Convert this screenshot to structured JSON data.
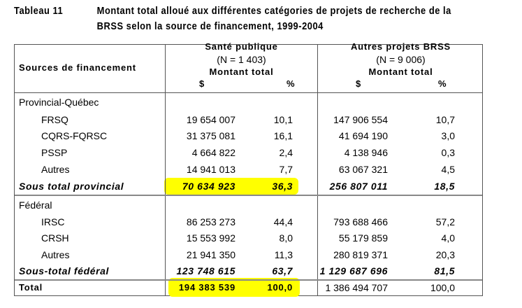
{
  "title": {
    "label": "Tableau 11",
    "line1": "Montant total alloué aux différentes catégories de projets de recherche de la",
    "line2": "BRSS selon la source de financement, 1999-2004"
  },
  "header": {
    "sources": "Sources de financement",
    "col1": {
      "name": "Santé publique",
      "n": "(N = 1 403)",
      "sub": "Montant total",
      "dollar": "$",
      "pct": "%"
    },
    "col2": {
      "name": "Autres projets BRSS",
      "n": "(N = 9 006)",
      "sub": "Montant total",
      "dollar": "$",
      "pct": "%"
    }
  },
  "rows": [
    {
      "label": "Provincial-Québec",
      "type": "group"
    },
    {
      "label": "FRSQ",
      "sp_amt": "19 654 007",
      "sp_pct": "10,1",
      "ap_amt": "147 906 554",
      "ap_pct": "10,7"
    },
    {
      "label": "CQRS-FQRSC",
      "sp_amt": "31 375 081",
      "sp_pct": "16,1",
      "ap_amt": "41 694 190",
      "ap_pct": "3,0"
    },
    {
      "label": "PSSP",
      "sp_amt": "4 664 822",
      "sp_pct": "2,4",
      "ap_amt": "4 138 946",
      "ap_pct": "0,3"
    },
    {
      "label": "Autres",
      "sp_amt": "14 941 013",
      "sp_pct": "7,7",
      "ap_amt": "63 067 321",
      "ap_pct": "4,5"
    },
    {
      "label": "Sous total provincial",
      "type": "subtotal",
      "sp_amt": "70 634 923",
      "sp_pct": "36,3",
      "ap_amt": "256 807 011",
      "ap_pct": "18,5"
    },
    {
      "label": "Fédéral",
      "type": "group"
    },
    {
      "label": "IRSC",
      "sp_amt": "86 253 273",
      "sp_pct": "44,4",
      "ap_amt": "793 688 466",
      "ap_pct": "57,2"
    },
    {
      "label": "CRSH",
      "sp_amt": "15 553 992",
      "sp_pct": "8,0",
      "ap_amt": "55 179 859",
      "ap_pct": "4,0"
    },
    {
      "label": "Autres",
      "sp_amt": "21 941 350",
      "sp_pct": "11,3",
      "ap_amt": "280 819 371",
      "ap_pct": "20,3"
    },
    {
      "label": "Sous-total fédéral",
      "type": "subtotal",
      "sp_amt": "123 748 615",
      "sp_pct": "63,7",
      "ap_amt": "1 129 687 696",
      "ap_pct": "81,5"
    },
    {
      "label": "Total",
      "type": "total",
      "sp_amt": "194 383 539",
      "sp_pct": "100,0",
      "ap_amt": "1 386 494 707",
      "ap_pct": "100,0"
    }
  ],
  "highlight_color": "#ffff00"
}
